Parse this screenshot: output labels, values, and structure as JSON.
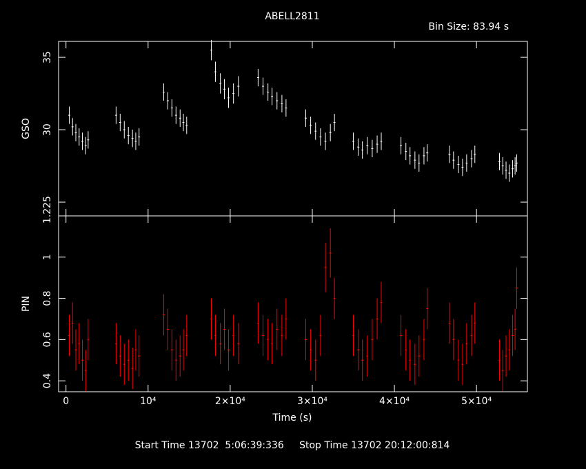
{
  "chart_data": [
    {
      "type": "errorbar",
      "title": "ABELL2811",
      "subtitle": "Bin Size: 83.94 s",
      "ylabel": "GSO",
      "x": [
        400,
        800,
        1200,
        1600,
        2000,
        2400,
        2700,
        6100,
        6600,
        7100,
        7600,
        8100,
        8500,
        8900,
        11900,
        12400,
        12900,
        13400,
        13900,
        14300,
        14700,
        17700,
        18200,
        18800,
        19300,
        19800,
        20400,
        21000,
        23400,
        24000,
        24600,
        25100,
        25700,
        26300,
        26800,
        29200,
        29800,
        30400,
        31000,
        31600,
        32200,
        32700,
        35000,
        35600,
        36100,
        36700,
        37300,
        37900,
        38400,
        40800,
        41400,
        41900,
        42500,
        43000,
        43600,
        44000,
        46700,
        47200,
        47800,
        48300,
        48800,
        49400,
        49800,
        52800,
        53200,
        53600,
        54000,
        54400,
        54700,
        54900
      ],
      "series": [
        {
          "name": "GSO",
          "color": "#ffffff",
          "values": [
            31.0,
            30.2,
            29.8,
            29.5,
            29.2,
            28.9,
            29.3,
            31.0,
            30.5,
            30.0,
            29.6,
            29.4,
            29.2,
            29.5,
            32.6,
            32.0,
            31.5,
            31.0,
            30.8,
            30.5,
            30.3,
            35.5,
            34.0,
            33.2,
            32.8,
            32.2,
            32.5,
            33.0,
            33.6,
            33.0,
            32.6,
            32.3,
            32.0,
            31.8,
            31.5,
            30.8,
            30.3,
            29.9,
            29.5,
            29.2,
            29.8,
            30.5,
            29.2,
            28.8,
            28.6,
            28.9,
            28.7,
            29.0,
            29.2,
            28.9,
            28.5,
            28.2,
            27.9,
            27.7,
            28.2,
            28.4,
            28.3,
            27.9,
            27.6,
            27.4,
            27.7,
            28.0,
            28.3,
            27.8,
            27.5,
            27.2,
            27.0,
            27.3,
            27.5,
            27.7
          ],
          "errors": [
            0.6,
            0.6,
            0.6,
            0.6,
            0.6,
            0.6,
            0.6,
            0.6,
            0.6,
            0.6,
            0.6,
            0.6,
            0.6,
            0.6,
            0.6,
            0.6,
            0.6,
            0.6,
            0.6,
            0.6,
            0.6,
            0.7,
            0.7,
            0.7,
            0.7,
            0.7,
            0.7,
            0.7,
            0.6,
            0.6,
            0.6,
            0.6,
            0.6,
            0.6,
            0.6,
            0.6,
            0.6,
            0.6,
            0.6,
            0.6,
            0.6,
            0.6,
            0.6,
            0.6,
            0.6,
            0.6,
            0.6,
            0.6,
            0.6,
            0.6,
            0.6,
            0.6,
            0.6,
            0.6,
            0.6,
            0.6,
            0.6,
            0.6,
            0.6,
            0.6,
            0.6,
            0.6,
            0.6,
            0.6,
            0.6,
            0.6,
            0.6,
            0.6,
            0.6,
            0.6
          ]
        }
      ],
      "ylim": [
        24.05,
        36.1
      ],
      "yticks": [
        25,
        30,
        35
      ]
    },
    {
      "type": "errorbar",
      "ylabel": "PIN",
      "xlabel": "Time (s)",
      "footnote": "Start Time 13702  5:06:39:336     Stop Time 13702 20:12:00:814",
      "x": [
        400,
        800,
        1200,
        1600,
        2000,
        2400,
        2700,
        6100,
        6600,
        7100,
        7600,
        8100,
        8500,
        8900,
        11900,
        12400,
        12900,
        13400,
        13900,
        14300,
        14700,
        17700,
        18200,
        18800,
        19300,
        19800,
        20400,
        21000,
        23400,
        24000,
        24600,
        25100,
        25700,
        26300,
        26800,
        29200,
        29800,
        30400,
        31000,
        31600,
        32200,
        32700,
        35000,
        35600,
        36100,
        36700,
        37300,
        37900,
        38400,
        40800,
        41400,
        41900,
        42500,
        43000,
        43600,
        44000,
        46700,
        47200,
        47800,
        48300,
        48800,
        49400,
        49800,
        52800,
        53200,
        53600,
        54000,
        54400,
        54700,
        54900
      ],
      "series": [
        {
          "name": "PIN",
          "color": "#ff0000",
          "values": [
            0.62,
            0.68,
            0.55,
            0.58,
            0.5,
            0.45,
            0.6,
            0.58,
            0.52,
            0.48,
            0.5,
            0.46,
            0.55,
            0.52,
            0.72,
            0.65,
            0.55,
            0.5,
            0.52,
            0.55,
            0.62,
            0.7,
            0.62,
            0.58,
            0.65,
            0.55,
            0.62,
            0.58,
            0.68,
            0.62,
            0.6,
            0.58,
            0.65,
            0.62,
            0.7,
            0.6,
            0.55,
            0.5,
            0.62,
            0.95,
            1.02,
            0.8,
            0.62,
            0.55,
            0.5,
            0.52,
            0.6,
            0.7,
            0.78,
            0.62,
            0.55,
            0.5,
            0.48,
            0.52,
            0.6,
            0.75,
            0.68,
            0.6,
            0.5,
            0.48,
            0.58,
            0.62,
            0.68,
            0.5,
            0.45,
            0.52,
            0.55,
            0.62,
            0.65,
            0.85
          ],
          "errors": [
            0.1,
            0.1,
            0.1,
            0.1,
            0.1,
            0.1,
            0.1,
            0.1,
            0.1,
            0.1,
            0.1,
            0.1,
            0.1,
            0.1,
            0.1,
            0.1,
            0.1,
            0.1,
            0.1,
            0.1,
            0.1,
            0.1,
            0.1,
            0.1,
            0.1,
            0.1,
            0.1,
            0.1,
            0.1,
            0.1,
            0.1,
            0.1,
            0.1,
            0.1,
            0.1,
            0.1,
            0.1,
            0.1,
            0.1,
            0.12,
            0.12,
            0.1,
            0.1,
            0.1,
            0.1,
            0.1,
            0.1,
            0.1,
            0.1,
            0.1,
            0.1,
            0.1,
            0.1,
            0.1,
            0.1,
            0.1,
            0.1,
            0.1,
            0.1,
            0.1,
            0.1,
            0.1,
            0.1,
            0.1,
            0.1,
            0.1,
            0.1,
            0.1,
            0.1,
            0.1
          ]
        }
      ],
      "xlim": [
        -900,
        56200
      ],
      "xticks": [
        0,
        {
          "value": 10000,
          "label": "10⁴"
        },
        {
          "value": 20000,
          "label": "2×10⁴"
        },
        {
          "value": 30000,
          "label": "3×10⁴"
        },
        {
          "value": 40000,
          "label": "4×10⁴"
        },
        {
          "value": 50000,
          "label": "5×10⁴"
        }
      ],
      "ylim": [
        0.347,
        1.2
      ],
      "yticks": [
        0.4,
        0.6,
        0.8,
        1,
        1.2
      ]
    }
  ]
}
